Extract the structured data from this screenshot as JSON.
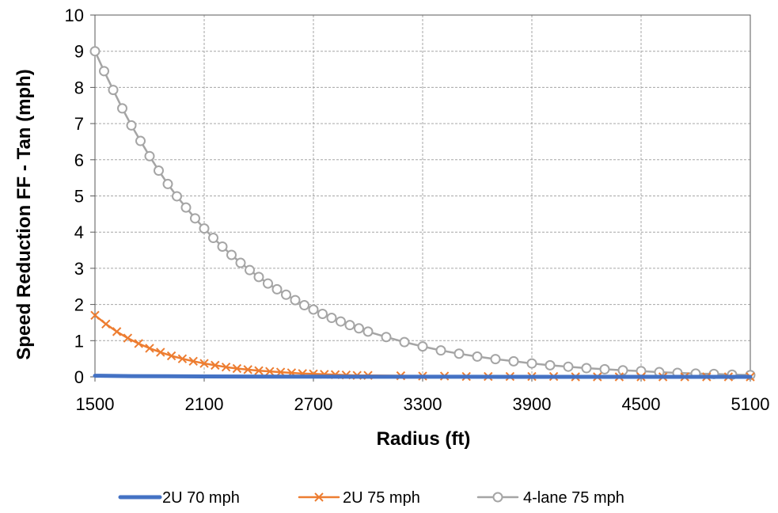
{
  "chart_data": {
    "type": "line",
    "xlabel": "Radius (ft)",
    "ylabel": "Speed Reduction FF - Tan (mph)",
    "xlim": [
      1500,
      5100
    ],
    "ylim": [
      0,
      10
    ],
    "xticks": [
      1500,
      2100,
      2700,
      3300,
      3900,
      4500,
      5100
    ],
    "yticks": [
      0,
      1,
      2,
      3,
      4,
      5,
      6,
      7,
      8,
      9,
      10
    ],
    "grid": "dashed",
    "legend_position": "bottom",
    "series": [
      {
        "name": "2U 70 mph",
        "color": "#4472C4",
        "marker": "none",
        "x": [
          1500,
          1700,
          1900,
          2100,
          2300,
          2500,
          2700,
          3000,
          3500,
          4000,
          4500,
          5100
        ],
        "y": [
          0.03,
          0.02,
          0.015,
          0.01,
          0.008,
          0.006,
          0.004,
          0.003,
          0.002,
          0.001,
          0.0005,
          0.0
        ]
      },
      {
        "name": "2U 75 mph",
        "color": "#ED7D31",
        "marker": "x",
        "x": [
          1500,
          1560,
          1620,
          1680,
          1740,
          1800,
          1860,
          1920,
          1980,
          2040,
          2100,
          2160,
          2220,
          2280,
          2340,
          2400,
          2460,
          2520,
          2580,
          2640,
          2700,
          2760,
          2820,
          2880,
          2940,
          3000,
          3180,
          3300,
          3420,
          3540,
          3660,
          3780,
          3900,
          4020,
          4140,
          4260,
          4380,
          4500,
          4620,
          4740,
          4860,
          4980,
          5100
        ],
        "y": [
          1.7,
          1.46,
          1.25,
          1.07,
          0.92,
          0.79,
          0.68,
          0.58,
          0.5,
          0.43,
          0.37,
          0.32,
          0.27,
          0.23,
          0.2,
          0.17,
          0.15,
          0.13,
          0.11,
          0.09,
          0.08,
          0.07,
          0.06,
          0.05,
          0.04,
          0.04,
          0.03,
          0.02,
          0.02,
          0.01,
          0.01,
          0.01,
          0.01,
          0.01,
          0.0,
          0.0,
          0.0,
          0.0,
          0.0,
          0.0,
          0.0,
          0.0,
          0.0
        ]
      },
      {
        "name": "4-lane 75 mph",
        "color": "#A5A5A5",
        "marker": "circle",
        "x": [
          1500,
          1550,
          1600,
          1650,
          1700,
          1750,
          1800,
          1850,
          1900,
          1950,
          2000,
          2050,
          2100,
          2150,
          2200,
          2250,
          2300,
          2350,
          2400,
          2450,
          2500,
          2550,
          2600,
          2650,
          2700,
          2750,
          2800,
          2850,
          2900,
          2950,
          3000,
          3100,
          3200,
          3300,
          3400,
          3500,
          3600,
          3700,
          3800,
          3900,
          4000,
          4100,
          4200,
          4300,
          4400,
          4500,
          4600,
          4700,
          4800,
          4900,
          5000,
          5100
        ],
        "y": [
          9.0,
          8.45,
          7.93,
          7.42,
          6.95,
          6.52,
          6.1,
          5.7,
          5.33,
          4.99,
          4.68,
          4.38,
          4.1,
          3.84,
          3.6,
          3.37,
          3.15,
          2.95,
          2.76,
          2.58,
          2.42,
          2.27,
          2.12,
          1.98,
          1.86,
          1.74,
          1.63,
          1.53,
          1.43,
          1.34,
          1.25,
          1.1,
          0.96,
          0.84,
          0.73,
          0.64,
          0.56,
          0.49,
          0.43,
          0.37,
          0.32,
          0.28,
          0.24,
          0.21,
          0.18,
          0.16,
          0.13,
          0.11,
          0.09,
          0.08,
          0.06,
          0.05
        ]
      }
    ]
  }
}
